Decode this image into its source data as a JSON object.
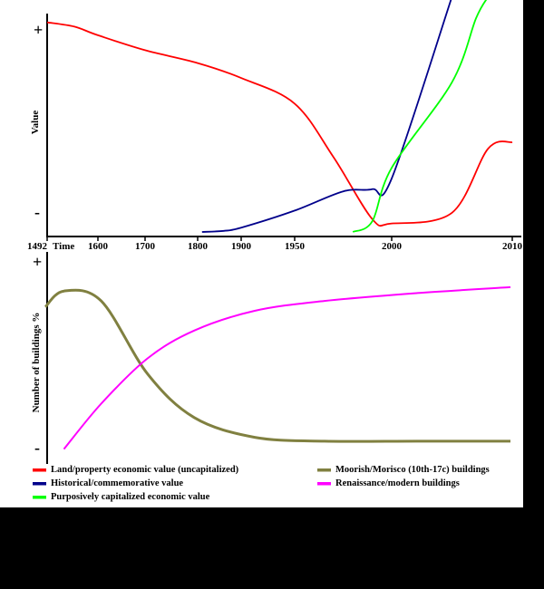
{
  "chart_data": [
    {
      "type": "line",
      "title": "",
      "xlabel": "Time",
      "ylabel": "Value",
      "y_scale_labels": {
        "high": "+",
        "low": "-"
      },
      "x_ticks": [
        "1492",
        "1600",
        "1700",
        "1800",
        "1900",
        "1950",
        "2000",
        "2010"
      ],
      "xlim": [
        1492,
        2010
      ],
      "ylim": [
        0,
        100
      ],
      "x_axis_note": "non-linear time axis (tick spacing differs)",
      "grid": false,
      "legend": "bottom",
      "series": [
        {
          "name": "Land/property economic value (uncapitalized)",
          "color": "#ff0000",
          "points": [
            [
              1492,
              98
            ],
            [
              1550,
              96
            ],
            [
              1600,
              92
            ],
            [
              1700,
              85
            ],
            [
              1800,
              79
            ],
            [
              1900,
              72
            ],
            [
              1950,
              60
            ],
            [
              1970,
              35
            ],
            [
              1990,
              6
            ],
            [
              2000,
              4
            ],
            [
              2005,
              9
            ],
            [
              2008,
              39
            ],
            [
              2010,
              42
            ]
          ]
        },
        {
          "name": "Historical/commemorative value",
          "color": "#00008b",
          "points": [
            [
              1810,
              0
            ],
            [
              1860,
              0.5
            ],
            [
              1900,
              2
            ],
            [
              1950,
              10
            ],
            [
              1975,
              19
            ],
            [
              1990,
              20
            ],
            [
              2000,
              25
            ],
            [
              2005,
              110
            ]
          ]
        },
        {
          "name": "Purposively capitalized economic value",
          "color": "#00ff00",
          "points": [
            [
              1980,
              0
            ],
            [
              1990,
              5
            ],
            [
              2000,
              30
            ],
            [
              2005,
              70
            ],
            [
              2007,
              100
            ],
            [
              2008,
              110
            ]
          ]
        }
      ]
    },
    {
      "type": "line",
      "title": "",
      "xlabel": "",
      "ylabel": "Number of buildings %",
      "y_scale_labels": {
        "high": "+",
        "low": "-"
      },
      "ylim": [
        0,
        100
      ],
      "grid": false,
      "legend": "bottom",
      "series": [
        {
          "name": "Moorish/Morisco (10th-17c) buildings",
          "color": "#808040",
          "points": [
            [
              0,
              74
            ],
            [
              0.04,
              82
            ],
            [
              0.12,
              77
            ],
            [
              0.22,
              40
            ],
            [
              0.32,
              18
            ],
            [
              0.45,
              8
            ],
            [
              0.6,
              6
            ],
            [
              0.8,
              6
            ],
            [
              1.0,
              6
            ]
          ]
        },
        {
          "name": "Renaissance/modern buildings",
          "color": "#ff00ff",
          "points": [
            [
              0.04,
              2
            ],
            [
              0.12,
              25
            ],
            [
              0.22,
              48
            ],
            [
              0.32,
              62
            ],
            [
              0.45,
              72
            ],
            [
              0.6,
              77
            ],
            [
              0.8,
              81
            ],
            [
              1.0,
              84
            ]
          ]
        }
      ]
    }
  ]
}
